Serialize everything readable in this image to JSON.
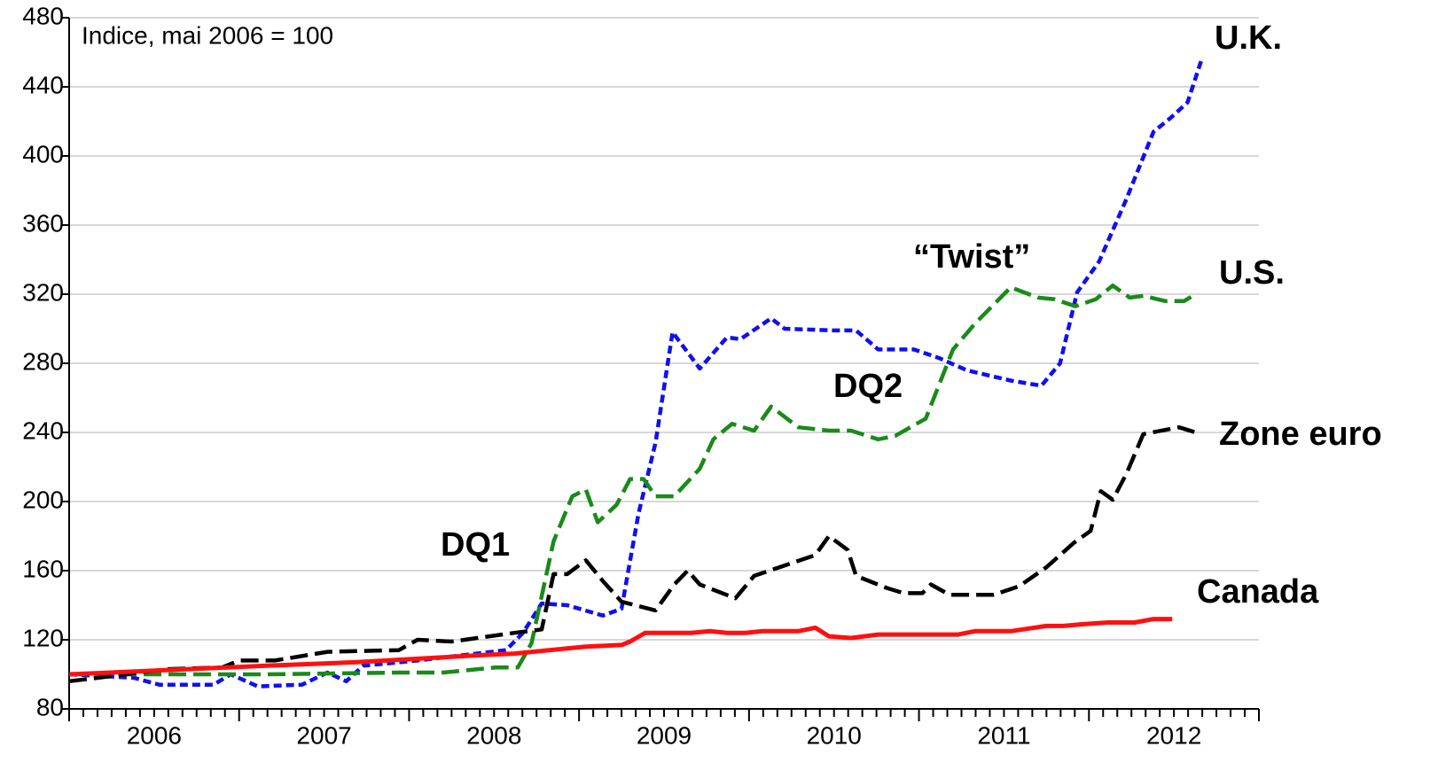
{
  "chart_data": {
    "type": "line",
    "annotations": [
      "Indice, mai 2006  = 100",
      "DQ1",
      "DQ2",
      "“Twist”"
    ],
    "xlim": [
      2006,
      2013
    ],
    "xticks": [
      {
        "value": 2006.5,
        "label": "2006"
      },
      {
        "value": 2007.5,
        "label": "2007"
      },
      {
        "value": 2008.5,
        "label": "2008"
      },
      {
        "value": 2009.5,
        "label": "2009"
      },
      {
        "value": 2010.5,
        "label": "2010"
      },
      {
        "value": 2011.5,
        "label": "2011"
      },
      {
        "value": 2012.5,
        "label": "2012"
      }
    ],
    "ylim": [
      80,
      480
    ],
    "yticks": [
      80,
      120,
      160,
      200,
      240,
      280,
      320,
      360,
      400,
      440,
      480
    ],
    "grid": true,
    "series": [
      {
        "name": "U.K.",
        "color": "#1010ee",
        "line_style": "dotted",
        "x": [
          2006.0,
          2006.38,
          2006.53,
          2006.85,
          2006.95,
          2007.11,
          2007.37,
          2007.52,
          2007.63,
          2007.73,
          2008.05,
          2008.31,
          2008.57,
          2008.67,
          2008.78,
          2008.93,
          2009.14,
          2009.25,
          2009.35,
          2009.45,
          2009.55,
          2009.71,
          2009.87,
          2009.95,
          2010.13,
          2010.21,
          2010.5,
          2010.63,
          2010.76,
          2010.97,
          2011.12,
          2011.28,
          2011.54,
          2011.72,
          2011.83,
          2011.93,
          2012.06,
          2012.22,
          2012.38,
          2012.48,
          2012.58,
          2012.66
        ],
        "values": [
          100,
          98,
          94,
          94,
          100,
          93,
          94,
          101,
          96,
          105,
          108,
          111,
          114,
          124,
          141,
          140,
          134,
          138,
          193,
          234,
          298,
          277,
          295,
          294,
          306,
          300,
          299,
          299,
          288,
          288,
          283,
          276,
          270,
          267,
          280,
          321,
          339,
          375,
          414,
          422,
          431,
          455
        ]
      },
      {
        "name": "U.S.",
        "color": "#1a8a1a",
        "line_style": "dashed",
        "x": [
          2006.0,
          2007.16,
          2007.94,
          2008.2,
          2008.51,
          2008.64,
          2008.72,
          2008.85,
          2008.96,
          2009.04,
          2009.11,
          2009.22,
          2009.3,
          2009.38,
          2009.45,
          2009.56,
          2009.71,
          2009.79,
          2009.9,
          2010.03,
          2010.13,
          2010.29,
          2010.47,
          2010.6,
          2010.76,
          2010.86,
          2011.04,
          2011.2,
          2011.33,
          2011.54,
          2011.7,
          2011.8,
          2011.92,
          2012.04,
          2012.14,
          2012.24,
          2012.32,
          2012.45,
          2012.56,
          2012.61
        ],
        "values": [
          100,
          100,
          101,
          101,
          104,
          104,
          118,
          177,
          203,
          207,
          188,
          198,
          213,
          213,
          203,
          203,
          219,
          236,
          245,
          241,
          255,
          243,
          241,
          241,
          236,
          238,
          248,
          288,
          303,
          324,
          318,
          317,
          313,
          317,
          325,
          318,
          319,
          316,
          316,
          319
        ]
      },
      {
        "name": "Zone euro",
        "color": "#000000",
        "line_style": "dashed",
        "x": [
          2006.0,
          2006.17,
          2006.58,
          2006.9,
          2007.0,
          2007.21,
          2007.52,
          2007.94,
          2008.05,
          2008.25,
          2008.62,
          2008.78,
          2008.85,
          2008.93,
          2009.04,
          2009.14,
          2009.25,
          2009.45,
          2009.56,
          2009.64,
          2009.71,
          2009.92,
          2010.03,
          2010.18,
          2010.39,
          2010.47,
          2010.58,
          2010.63,
          2010.81,
          2010.91,
          2011.02,
          2011.07,
          2011.18,
          2011.44,
          2011.59,
          2011.75,
          2011.91,
          2012.01,
          2012.07,
          2012.14,
          2012.22,
          2012.32,
          2012.53,
          2012.66
        ],
        "values": [
          96,
          98,
          103,
          104,
          108,
          108,
          113,
          114,
          120,
          119,
          124,
          126,
          158,
          158,
          166,
          154,
          142,
          137,
          152,
          160,
          152,
          144,
          157,
          162,
          169,
          180,
          172,
          157,
          150,
          147,
          147,
          152,
          146,
          146,
          151,
          162,
          176,
          183,
          206,
          201,
          216,
          239,
          243,
          239
        ]
      },
      {
        "name": "Canada",
        "color": "#ff1010",
        "line_style": "solid",
        "x": [
          2006.0,
          2007.16,
          2007.68,
          2008.41,
          2008.62,
          2008.93,
          2009.04,
          2009.25,
          2009.3,
          2009.39,
          2009.66,
          2009.77,
          2009.87,
          2009.98,
          2010.08,
          2010.29,
          2010.39,
          2010.47,
          2010.6,
          2010.76,
          2010.91,
          2011.23,
          2011.33,
          2011.54,
          2011.75,
          2011.85,
          2011.96,
          2012.11,
          2012.27,
          2012.38,
          2012.49
        ],
        "values": [
          100,
          105,
          107,
          111,
          112,
          115,
          116,
          117,
          119,
          124,
          124,
          125,
          124,
          124,
          125,
          125,
          127,
          122,
          121,
          123,
          123,
          123,
          125,
          125,
          128,
          128,
          129,
          130,
          130,
          132,
          132
        ]
      }
    ]
  }
}
